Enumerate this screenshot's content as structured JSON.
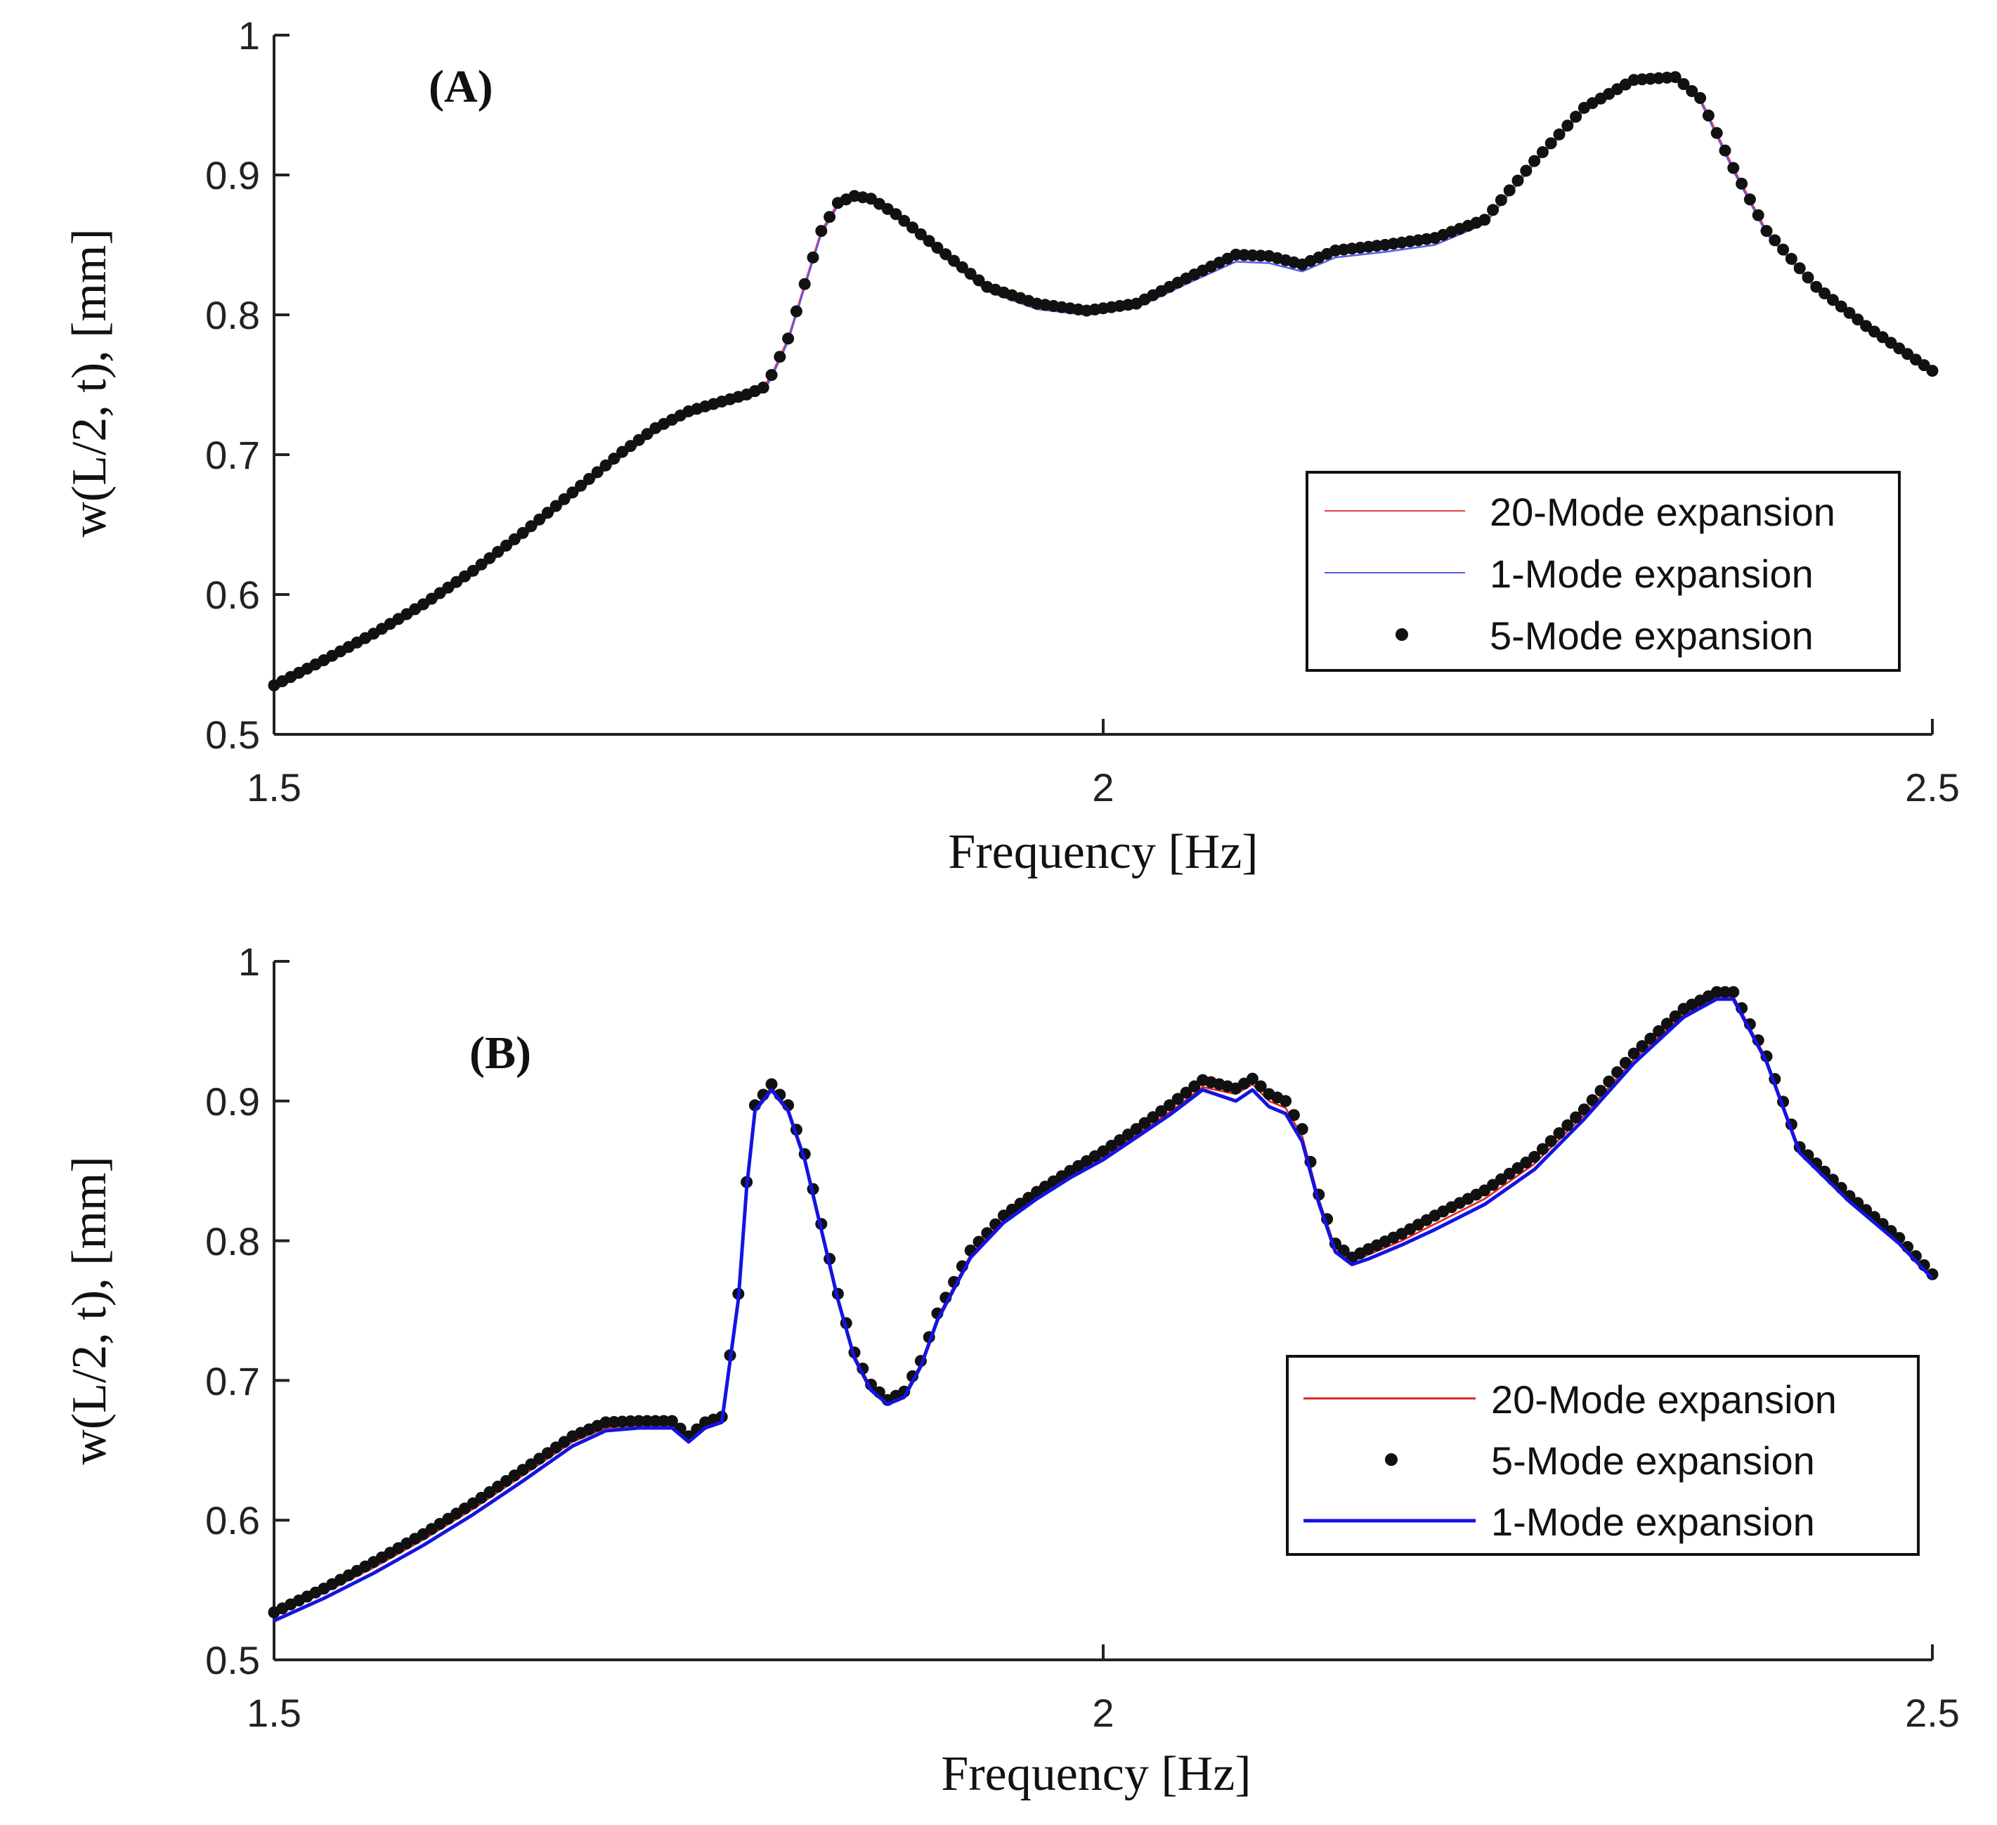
{
  "chart_data": [
    {
      "id": "A",
      "type": "line",
      "panel_label": "(A)",
      "xlabel": "Frequency [Hz]",
      "ylabel": "w(L/2, t), [mm]",
      "xlim": [
        1.5,
        2.5
      ],
      "ylim": [
        0.5,
        1.0
      ],
      "xticks": [
        1.5,
        2,
        2.5
      ],
      "xtick_labels": [
        "1.5",
        "2",
        "2.5"
      ],
      "yticks": [
        0.5,
        0.6,
        0.7,
        0.8,
        0.9,
        1.0
      ],
      "ytick_labels": [
        "0.5",
        "0.6",
        "0.7",
        "0.8",
        "0.9",
        "1"
      ],
      "x": [
        1.5,
        1.53,
        1.56,
        1.59,
        1.62,
        1.65,
        1.68,
        1.71,
        1.73,
        1.75,
        1.77,
        1.785,
        1.795,
        1.8,
        1.81,
        1.82,
        1.83,
        1.84,
        1.85,
        1.86,
        1.875,
        1.9,
        1.93,
        1.96,
        1.99,
        2.02,
        2.05,
        2.08,
        2.1,
        2.12,
        2.14,
        2.17,
        2.2,
        2.23,
        2.26,
        2.29,
        2.32,
        2.345,
        2.36,
        2.38,
        2.4,
        2.43,
        2.46,
        2.5
      ],
      "legend_position": "lower-right",
      "series": [
        {
          "name": "20-Mode expansion",
          "style": "line",
          "color": "#e8403f",
          "values": [
            0.535,
            0.553,
            0.572,
            0.593,
            0.617,
            0.644,
            0.673,
            0.702,
            0.719,
            0.731,
            0.738,
            0.743,
            0.748,
            0.757,
            0.783,
            0.822,
            0.86,
            0.88,
            0.885,
            0.883,
            0.872,
            0.848,
            0.82,
            0.808,
            0.803,
            0.808,
            0.826,
            0.843,
            0.842,
            0.836,
            0.846,
            0.85,
            0.855,
            0.868,
            0.91,
            0.948,
            0.968,
            0.97,
            0.955,
            0.905,
            0.86,
            0.82,
            0.792,
            0.76
          ]
        },
        {
          "name": "1-Mode expansion",
          "style": "line",
          "color": "#5a5af0",
          "values": [
            0.532,
            0.55,
            0.569,
            0.59,
            0.614,
            0.641,
            0.67,
            0.699,
            0.716,
            0.728,
            0.735,
            0.74,
            0.745,
            0.755,
            0.781,
            0.82,
            0.858,
            0.878,
            0.883,
            0.881,
            0.87,
            0.845,
            0.817,
            0.804,
            0.8,
            0.805,
            0.822,
            0.838,
            0.837,
            0.831,
            0.841,
            0.845,
            0.85,
            0.865,
            0.908,
            0.946,
            0.966,
            0.968,
            0.953,
            0.903,
            0.858,
            0.818,
            0.79,
            0.758
          ]
        },
        {
          "name": "5-Mode expansion",
          "style": "markers",
          "color": "#111111",
          "values": [
            0.535,
            0.553,
            0.572,
            0.593,
            0.617,
            0.644,
            0.673,
            0.702,
            0.719,
            0.731,
            0.738,
            0.743,
            0.748,
            0.757,
            0.783,
            0.822,
            0.86,
            0.88,
            0.885,
            0.883,
            0.872,
            0.848,
            0.82,
            0.808,
            0.803,
            0.808,
            0.826,
            0.843,
            0.842,
            0.836,
            0.846,
            0.85,
            0.855,
            0.868,
            0.91,
            0.948,
            0.968,
            0.97,
            0.955,
            0.905,
            0.86,
            0.82,
            0.792,
            0.76
          ]
        }
      ],
      "legend": [
        "20-Mode expansion",
        "1-Mode expansion",
        "5-Mode expansion"
      ]
    },
    {
      "id": "B",
      "type": "line",
      "panel_label": "(B)",
      "xlabel": "Frequency [Hz]",
      "ylabel": "w(L/2, t), [mm]",
      "xlim": [
        1.5,
        2.5
      ],
      "ylim": [
        0.5,
        1.0
      ],
      "xticks": [
        1.5,
        2,
        2.5
      ],
      "xtick_labels": [
        "1.5",
        "2",
        "2.5"
      ],
      "yticks": [
        0.5,
        0.6,
        0.7,
        0.8,
        0.9,
        1.0
      ],
      "ytick_labels": [
        "0.5",
        "0.6",
        "0.7",
        "0.8",
        "0.9",
        "1"
      ],
      "x": [
        1.5,
        1.53,
        1.56,
        1.59,
        1.62,
        1.65,
        1.68,
        1.7,
        1.72,
        1.74,
        1.75,
        1.76,
        1.77,
        1.78,
        1.785,
        1.79,
        1.8,
        1.81,
        1.82,
        1.83,
        1.84,
        1.85,
        1.86,
        1.87,
        1.88,
        1.89,
        1.9,
        1.92,
        1.94,
        1.96,
        1.98,
        2.0,
        2.02,
        2.04,
        2.06,
        2.08,
        2.09,
        2.1,
        2.11,
        2.12,
        2.13,
        2.14,
        2.15,
        2.16,
        2.18,
        2.2,
        2.23,
        2.26,
        2.29,
        2.32,
        2.35,
        2.37,
        2.38,
        2.4,
        2.42,
        2.45,
        2.48,
        2.5
      ],
      "legend_position": "lower-right",
      "series": [
        {
          "name": "20-Mode expansion",
          "style": "line",
          "color": "#e02020",
          "values": [
            0.532,
            0.548,
            0.566,
            0.586,
            0.608,
            0.632,
            0.656,
            0.666,
            0.668,
            0.668,
            0.658,
            0.668,
            0.672,
            0.76,
            0.84,
            0.895,
            0.91,
            0.895,
            0.86,
            0.81,
            0.76,
            0.718,
            0.695,
            0.685,
            0.69,
            0.712,
            0.745,
            0.79,
            0.815,
            0.832,
            0.847,
            0.86,
            0.876,
            0.892,
            0.91,
            0.905,
            0.912,
            0.9,
            0.895,
            0.875,
            0.83,
            0.795,
            0.785,
            0.79,
            0.8,
            0.812,
            0.83,
            0.855,
            0.89,
            0.93,
            0.962,
            0.975,
            0.975,
            0.93,
            0.865,
            0.83,
            0.8,
            0.775
          ]
        },
        {
          "name": "5-Mode expansion",
          "style": "markers",
          "color": "#111111",
          "values": [
            0.534,
            0.551,
            0.57,
            0.59,
            0.612,
            0.636,
            0.66,
            0.67,
            0.671,
            0.671,
            0.66,
            0.67,
            0.674,
            0.762,
            0.842,
            0.897,
            0.912,
            0.897,
            0.862,
            0.812,
            0.762,
            0.72,
            0.697,
            0.686,
            0.692,
            0.714,
            0.748,
            0.793,
            0.818,
            0.835,
            0.85,
            0.864,
            0.88,
            0.897,
            0.915,
            0.909,
            0.916,
            0.905,
            0.9,
            0.88,
            0.833,
            0.798,
            0.788,
            0.794,
            0.805,
            0.818,
            0.836,
            0.86,
            0.894,
            0.934,
            0.966,
            0.978,
            0.978,
            0.932,
            0.867,
            0.832,
            0.802,
            0.776
          ]
        },
        {
          "name": "1-Mode expansion",
          "style": "line",
          "color": "#1414e0",
          "values": [
            0.528,
            0.544,
            0.562,
            0.582,
            0.604,
            0.628,
            0.653,
            0.664,
            0.666,
            0.666,
            0.656,
            0.666,
            0.67,
            0.758,
            0.838,
            0.893,
            0.908,
            0.893,
            0.858,
            0.808,
            0.758,
            0.716,
            0.693,
            0.683,
            0.688,
            0.71,
            0.743,
            0.788,
            0.813,
            0.83,
            0.845,
            0.858,
            0.874,
            0.89,
            0.908,
            0.9,
            0.908,
            0.896,
            0.891,
            0.871,
            0.827,
            0.792,
            0.783,
            0.787,
            0.797,
            0.808,
            0.826,
            0.851,
            0.887,
            0.927,
            0.96,
            0.973,
            0.973,
            0.928,
            0.863,
            0.828,
            0.798,
            0.773
          ]
        }
      ],
      "legend": [
        "20-Mode expansion",
        "5-Mode expansion",
        "1-Mode expansion"
      ]
    }
  ]
}
